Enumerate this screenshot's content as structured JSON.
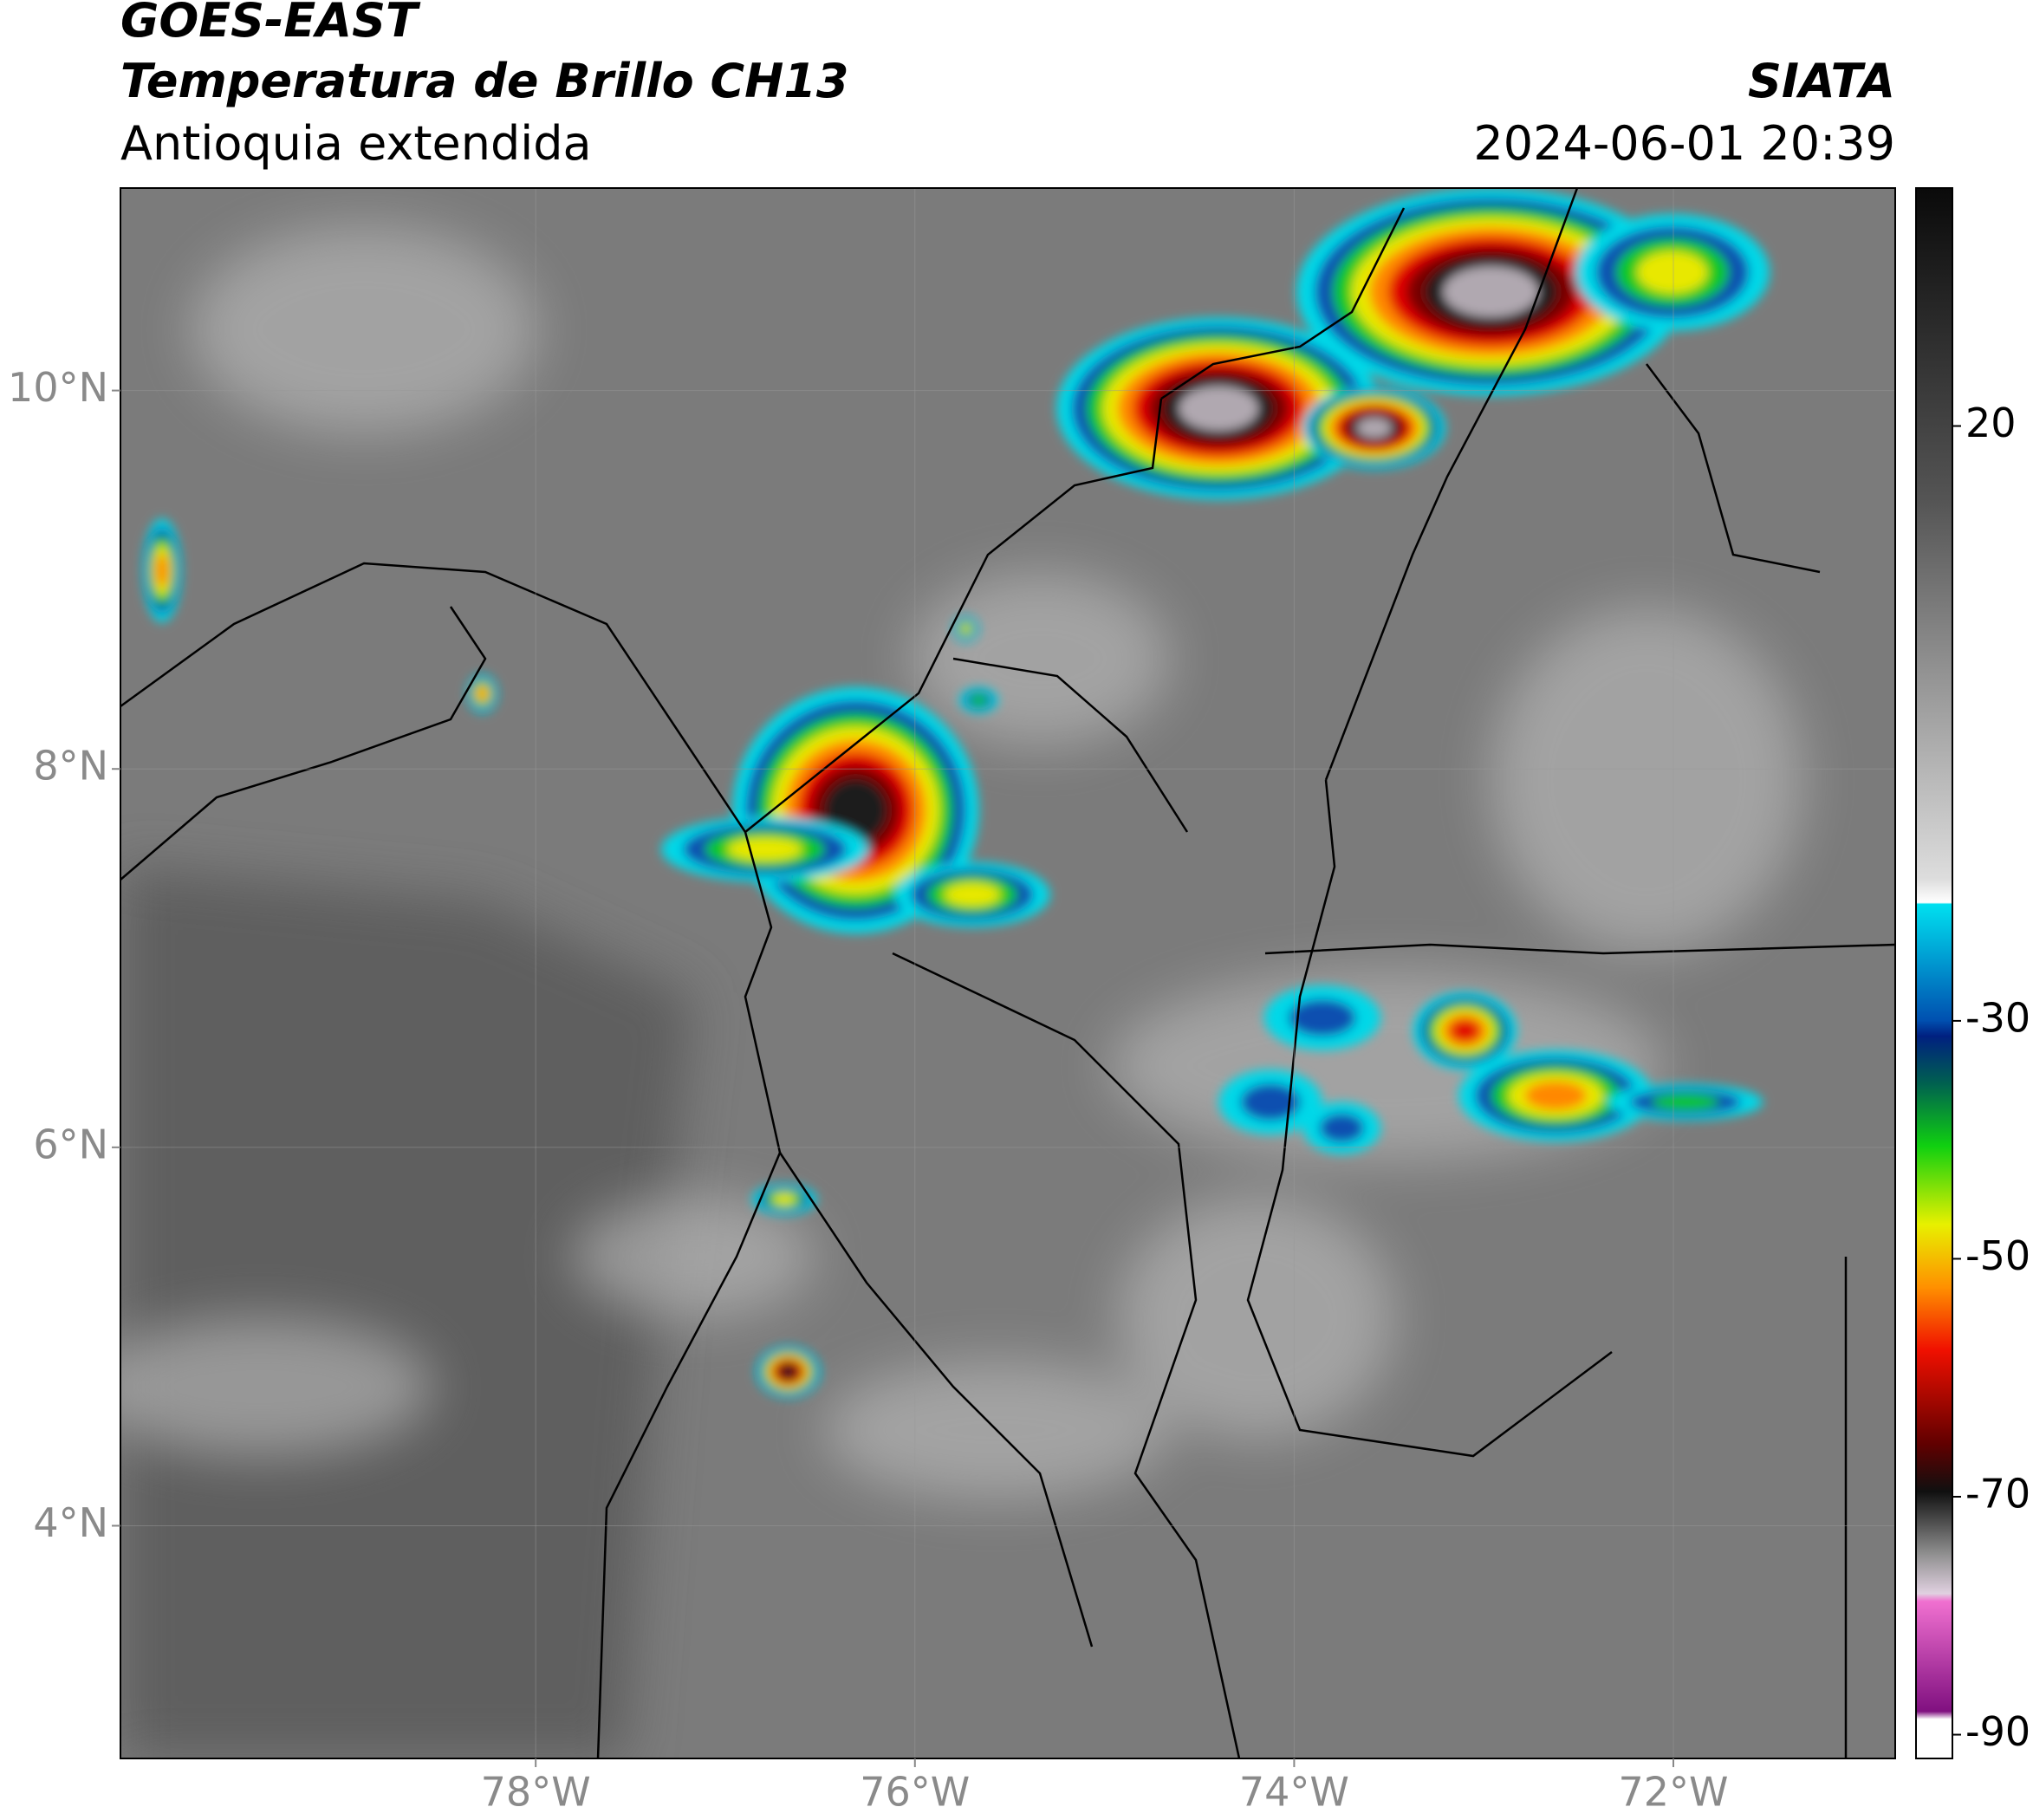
{
  "header": {
    "title": "GOES-EAST",
    "subtitle": "Temperatura de Brillo CH13",
    "region": "Antioquia extendida",
    "source": "SIATA",
    "datetime": "2024-06-01 20:39"
  },
  "map": {
    "xlim": [
      -80.19,
      -70.83
    ],
    "ylim": [
      2.77,
      11.07
    ],
    "xticks": [
      {
        "value": -78,
        "label": "78°W"
      },
      {
        "value": -76,
        "label": "76°W"
      },
      {
        "value": -74,
        "label": "74°W"
      },
      {
        "value": -72,
        "label": "72°W"
      }
    ],
    "yticks": [
      {
        "value": 10,
        "label": "10°N"
      },
      {
        "value": 8,
        "label": "8°N"
      },
      {
        "value": 6,
        "label": "6°N"
      },
      {
        "value": 4,
        "label": "4°N"
      }
    ]
  },
  "colorbar": {
    "lim": [
      -92,
      40
    ],
    "ticks": [
      20,
      -30,
      -50,
      -70,
      -90
    ]
  }
}
